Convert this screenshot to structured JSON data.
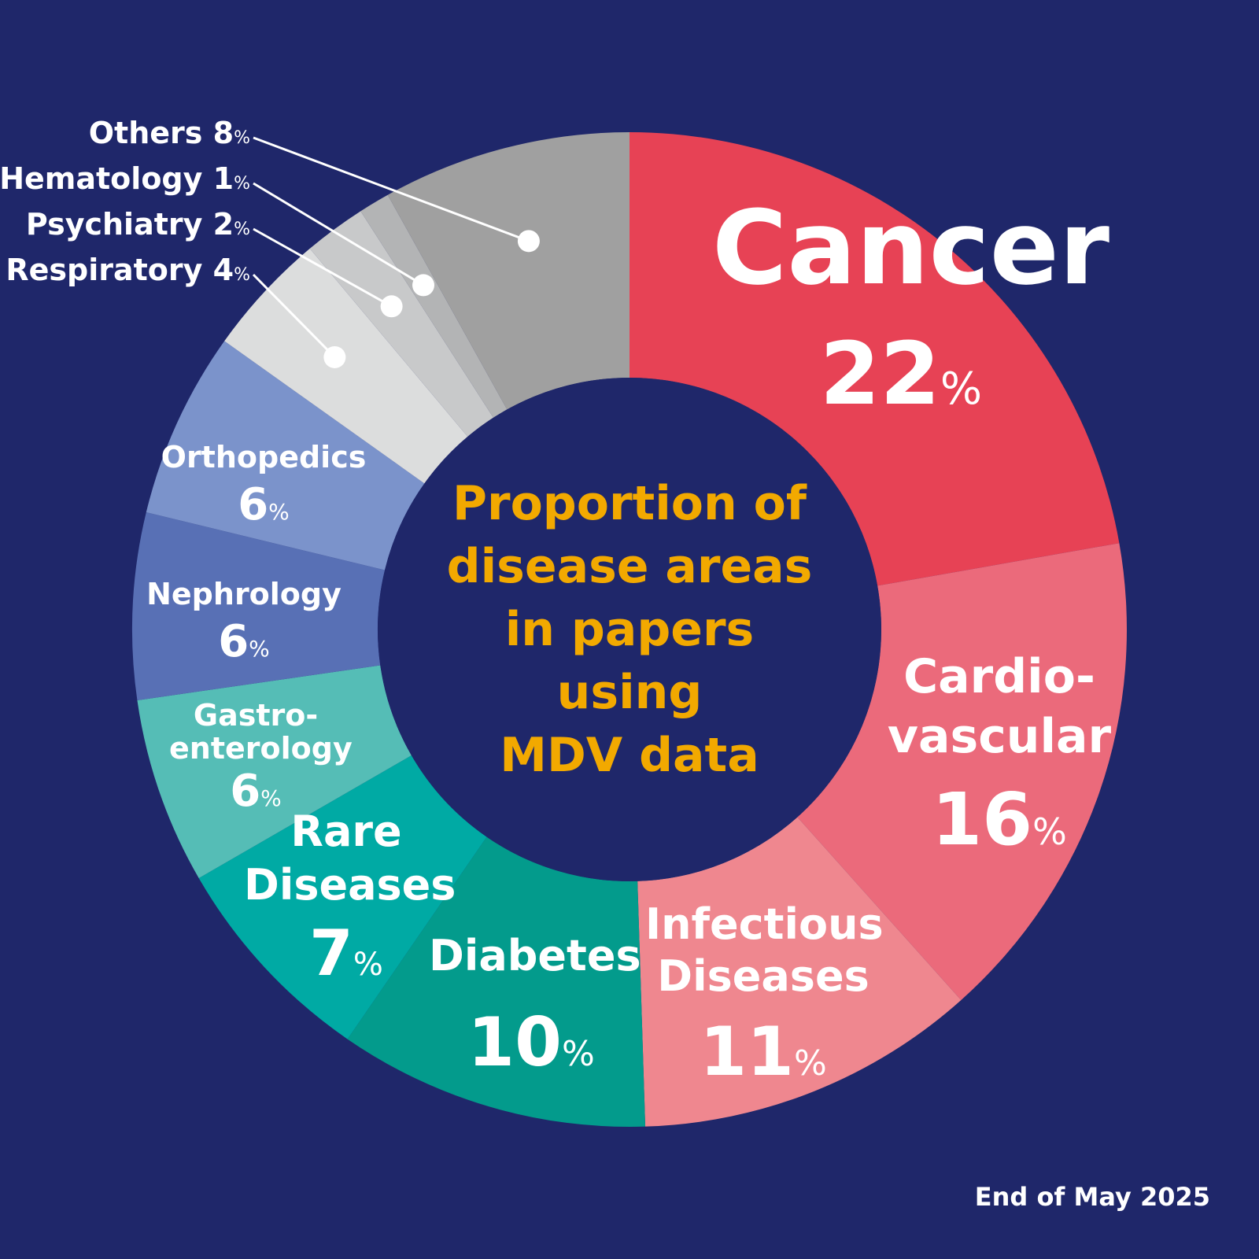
{
  "chart_data": {
    "type": "pie",
    "variant": "donut",
    "title": "Proportion of disease areas in papers using MDV data",
    "title_lines": [
      "Proportion of",
      "disease areas",
      "in papers",
      "using",
      "MDV data"
    ],
    "unit": "%",
    "slices": [
      {
        "key": "cancer",
        "label": "Cancer",
        "label_lines": [
          "Cancer"
        ],
        "value": 22,
        "color": "#e74255"
      },
      {
        "key": "cardio",
        "label": "Cardiovascular",
        "label_lines": [
          "Cardio-",
          "vascular"
        ],
        "value": 16,
        "color": "#eb6a7b"
      },
      {
        "key": "infectious",
        "label": "Infectious Diseases",
        "label_lines": [
          "Infectious",
          "Diseases"
        ],
        "value": 11,
        "color": "#ef878f"
      },
      {
        "key": "diabetes",
        "label": "Diabetes",
        "label_lines": [
          "Diabetes"
        ],
        "value": 10,
        "color": "#039b8c"
      },
      {
        "key": "rare",
        "label": "Rare Diseases",
        "label_lines": [
          "Rare",
          "Diseases"
        ],
        "value": 7,
        "color": "#00aaa4"
      },
      {
        "key": "gastro",
        "label": "Gastroenterology",
        "label_lines": [
          "Gastro-",
          "enterology"
        ],
        "value": 6,
        "color": "#55bdb6"
      },
      {
        "key": "nephro",
        "label": "Nephrology",
        "label_lines": [
          "Nephrology"
        ],
        "value": 6,
        "color": "#5870b5"
      },
      {
        "key": "ortho",
        "label": "Orthopedics",
        "label_lines": [
          "Orthopedics"
        ],
        "value": 6,
        "color": "#7b93cb"
      },
      {
        "key": "resp",
        "label": "Respiratory",
        "label_lines": [
          "Respiratory"
        ],
        "value": 4,
        "color": "#dcdddd"
      },
      {
        "key": "psych",
        "label": "Psychiatry",
        "label_lines": [
          "Psychiatry"
        ],
        "value": 2,
        "color": "#c8c9ca"
      },
      {
        "key": "hema",
        "label": "Hematology",
        "label_lines": [
          "Hematology"
        ],
        "value": 1,
        "color": "#b3b4b5"
      },
      {
        "key": "others",
        "label": "Others",
        "label_lines": [
          "Others"
        ],
        "value": 8,
        "color": "#a0a0a0"
      }
    ],
    "annotation": "End of May 2025"
  },
  "colors": {
    "background": "#1f276a",
    "title": "#f2a900",
    "label": "#ffffff"
  }
}
